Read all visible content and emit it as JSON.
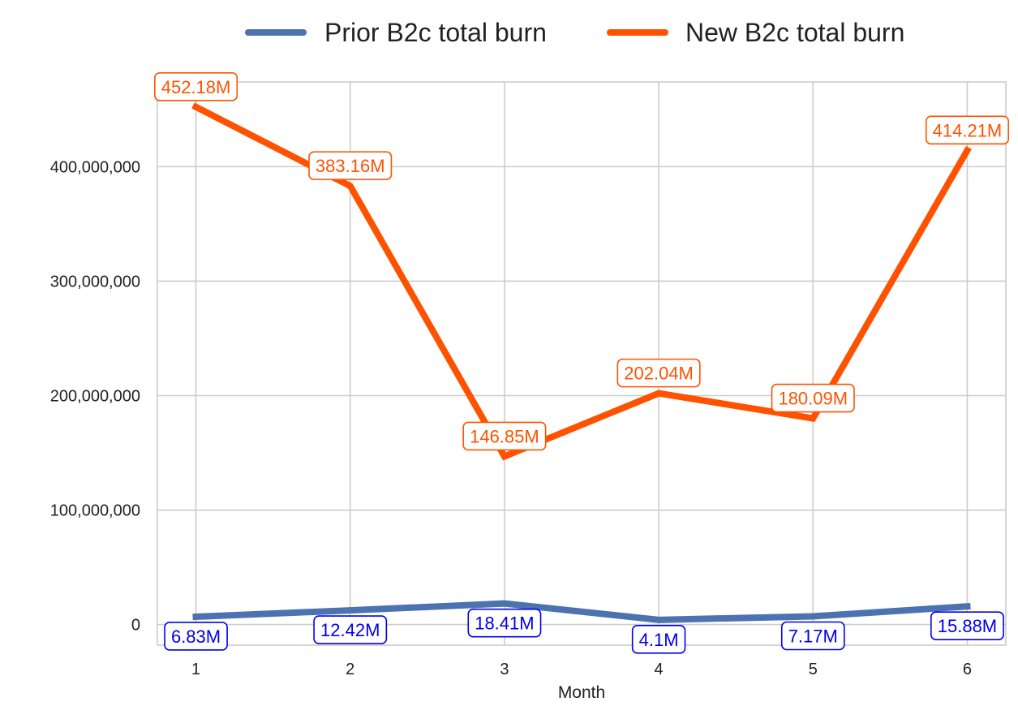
{
  "chart_data": {
    "type": "line",
    "title": "",
    "xlabel": "Month",
    "ylabel": "",
    "x": [
      1,
      2,
      3,
      4,
      5,
      6
    ],
    "xlim": [
      0.75,
      6.25
    ],
    "ylim": [
      -18000000,
      474000000
    ],
    "yticks": [
      0,
      100000000,
      200000000,
      300000000,
      400000000
    ],
    "ytick_labels": [
      "0",
      "100,000,000",
      "200,000,000",
      "300,000,000",
      "400,000,000"
    ],
    "xtick_labels": [
      "1",
      "2",
      "3",
      "4",
      "5",
      "6"
    ],
    "grid": true,
    "legend_position": "top-center",
    "series": [
      {
        "name": "Prior B2c total burn",
        "color": "#4c72b0",
        "label_color": "#0000ee",
        "values": [
          6830000,
          12420000,
          18410000,
          4100000,
          7170000,
          15880000
        ],
        "labels": [
          "6.83M",
          "12.42M",
          "18.41M",
          "4.1M",
          "7.17M",
          "15.88M"
        ],
        "label_side": "below"
      },
      {
        "name": "New B2c total burn",
        "color": "#ff5200",
        "label_color": "#ff5200",
        "values": [
          452180000,
          383160000,
          146850000,
          202040000,
          180090000,
          414210000
        ],
        "labels": [
          "452.18M",
          "383.16M",
          "146.85M",
          "202.04M",
          "180.09M",
          "414.21M"
        ],
        "label_side": "above"
      }
    ]
  }
}
